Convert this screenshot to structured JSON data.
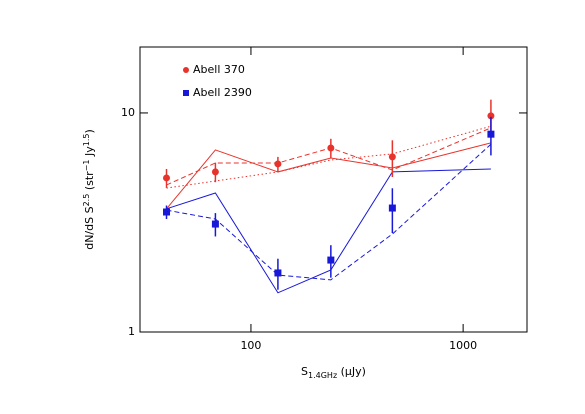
{
  "chart_data": {
    "type": "scatter",
    "x": [
      40,
      68,
      134,
      238,
      464,
      1352
    ],
    "xlim": [
      30,
      2000
    ],
    "ylim": [
      1,
      20
    ],
    "xticks": [
      100,
      1000
    ],
    "yticks": [
      1,
      10
    ],
    "xlog": true,
    "ylog": true,
    "xlabel_parts": [
      "S",
      "1.4GHz",
      " (μJy)"
    ],
    "ylabel_parts": [
      "dN/dS S",
      "2.5",
      " (str",
      "−1",
      " Jy",
      "1.5",
      ")"
    ],
    "legend": "upper left",
    "series": [
      {
        "name": "Abell 370",
        "color": "#e8332c",
        "marker": "circle",
        "values": [
          5.05,
          5.38,
          5.85,
          6.92,
          6.3,
          9.7
        ],
        "errors": [
          0.5,
          0.55,
          0.45,
          0.7,
          1.2,
          1.8
        ]
      },
      {
        "name": "Abell 2390",
        "color": "#1818d8",
        "marker": "square",
        "values": [
          3.53,
          3.11,
          1.86,
          2.13,
          3.68,
          8.0
        ],
        "errors": [
          0.25,
          0.38,
          0.3,
          0.36,
          0.85,
          1.6
        ]
      }
    ],
    "lines": [
      {
        "color": "#e8332c",
        "dash": "solid",
        "values": [
          3.65,
          6.78,
          5.38,
          6.23,
          5.61,
          7.3
        ]
      },
      {
        "color": "#e8332c",
        "dash": "dashed",
        "values": [
          4.69,
          5.91,
          5.91,
          6.92,
          5.49,
          8.55
        ]
      },
      {
        "color": "#e8332c",
        "dash": "dotted",
        "values": [
          4.54,
          4.89,
          5.38,
          6.1,
          6.5,
          8.7
        ]
      },
      {
        "color": "#1818d8",
        "dash": "solid",
        "values": [
          3.65,
          4.31,
          1.51,
          1.92,
          5.38,
          5.55
        ]
      },
      {
        "color": "#1818d8",
        "dash": "dashed",
        "values": [
          3.6,
          3.28,
          1.82,
          1.73,
          2.8,
          7.2
        ]
      }
    ]
  }
}
